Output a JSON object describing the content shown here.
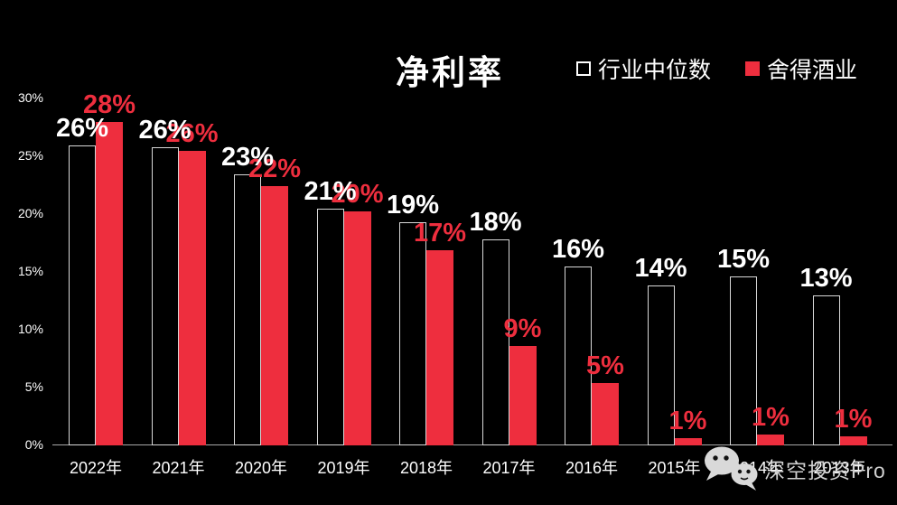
{
  "title": "净利率",
  "legend": [
    {
      "label": "行业中位数",
      "swatch": "outline",
      "color": "#ffffff"
    },
    {
      "label": "舍得酒业",
      "swatch": "filled",
      "color": "#ee2e3e"
    }
  ],
  "watermark": {
    "text": "深空投资Pro",
    "icon": "wechat-icon"
  },
  "colors": {
    "background": "#000000",
    "shede_red": "#ee2e3e",
    "outline_gray": "#d8d8d8",
    "axis_gray": "#a8a8a8"
  },
  "chart_data": {
    "type": "bar",
    "title": "净利率",
    "categories": [
      "2022年",
      "2021年",
      "2020年",
      "2019年",
      "2018年",
      "2017年",
      "2016年",
      "2015年",
      "2014年",
      "2013年"
    ],
    "series": [
      {
        "name": "行业中位数",
        "style": "outline",
        "color": "#ffffff",
        "values": [
          25.9,
          25.8,
          23.4,
          20.5,
          19.3,
          17.8,
          15.5,
          13.8,
          14.6,
          13.0
        ],
        "labels": [
          "26%",
          "26%",
          "23%",
          "21%",
          "19%",
          "18%",
          "16%",
          "14%",
          "15%",
          "13%"
        ]
      },
      {
        "name": "舍得酒业",
        "style": "filled",
        "color": "#ee2e3e",
        "values": [
          28.0,
          25.5,
          22.4,
          20.2,
          16.9,
          8.6,
          5.4,
          0.6,
          0.9,
          0.8
        ],
        "labels": [
          "28%",
          "26%",
          "22%",
          "20%",
          "17%",
          "9%",
          "5%",
          "1%",
          "1%",
          "1%"
        ]
      }
    ],
    "xlabel": "",
    "ylabel": "",
    "ylim": [
      0,
      30
    ],
    "yticks": [
      "0%",
      "5%",
      "10%",
      "15%",
      "20%",
      "25%",
      "30%"
    ],
    "grid": false,
    "legend_position": "top-right",
    "background": "black"
  }
}
